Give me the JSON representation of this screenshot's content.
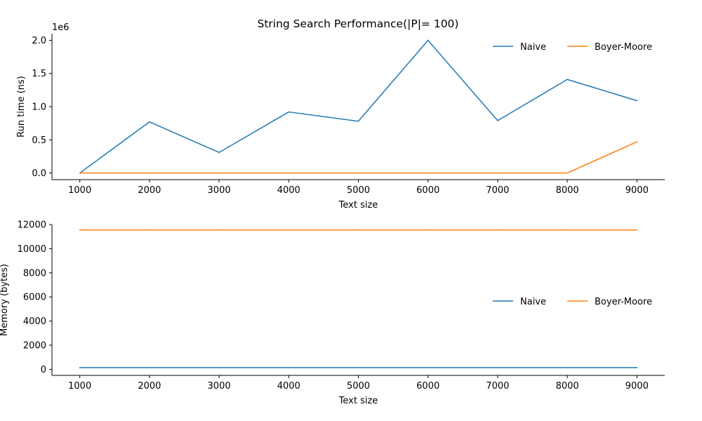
{
  "figure": {
    "title": "String Search Performance(|P|= 100)"
  },
  "chart_data": [
    {
      "type": "line",
      "title": "String Search Performance(|P|= 100)",
      "xlabel": "Text size",
      "ylabel": "Run time (ns)",
      "offset_label": "1e6",
      "x": [
        1000,
        2000,
        3000,
        4000,
        5000,
        6000,
        7000,
        8000,
        9000
      ],
      "x_ticks": [
        1000,
        2000,
        3000,
        4000,
        5000,
        6000,
        7000,
        8000,
        9000
      ],
      "x_tick_labels": [
        "1000",
        "2000",
        "3000",
        "4000",
        "5000",
        "6000",
        "7000",
        "8000",
        "9000"
      ],
      "xlim": [
        600,
        9400
      ],
      "ylim": [
        -100000,
        2100000
      ],
      "y_ticks": [
        0,
        500000,
        1000000,
        1500000,
        2000000
      ],
      "y_tick_labels": [
        "0.0",
        "0.5",
        "1.0",
        "1.5",
        "2.0"
      ],
      "grid": false,
      "legend_position": "top-right",
      "series": [
        {
          "name": "Naive",
          "color": "#1f77b4",
          "values": [
            0,
            770000,
            310000,
            920000,
            780000,
            2000000,
            790000,
            1410000,
            1090000
          ]
        },
        {
          "name": "Boyer-Moore",
          "color": "#ff7f0e",
          "values": [
            0,
            0,
            0,
            0,
            0,
            0,
            0,
            0,
            470000
          ]
        }
      ]
    },
    {
      "type": "line",
      "title": "",
      "xlabel": "Text size",
      "ylabel": "Memory (bytes)",
      "x": [
        1000,
        2000,
        3000,
        4000,
        5000,
        6000,
        7000,
        8000,
        9000
      ],
      "x_ticks": [
        1000,
        2000,
        3000,
        4000,
        5000,
        6000,
        7000,
        8000,
        9000
      ],
      "x_tick_labels": [
        "1000",
        "2000",
        "3000",
        "4000",
        "5000",
        "6000",
        "7000",
        "8000",
        "9000"
      ],
      "xlim": [
        600,
        9400
      ],
      "ylim": [
        -500,
        12000
      ],
      "y_ticks": [
        0,
        2000,
        4000,
        6000,
        8000,
        10000,
        12000
      ],
      "y_tick_labels": [
        "0",
        "2000",
        "4000",
        "6000",
        "8000",
        "10000",
        "12000"
      ],
      "grid": false,
      "legend_position": "center-right",
      "series": [
        {
          "name": "Naive",
          "color": "#1f77b4",
          "values": [
            150,
            150,
            150,
            150,
            150,
            150,
            150,
            150,
            150
          ]
        },
        {
          "name": "Boyer-Moore",
          "color": "#ff7f0e",
          "values": [
            11550,
            11550,
            11550,
            11550,
            11550,
            11550,
            11550,
            11550,
            11550
          ]
        }
      ]
    }
  ]
}
